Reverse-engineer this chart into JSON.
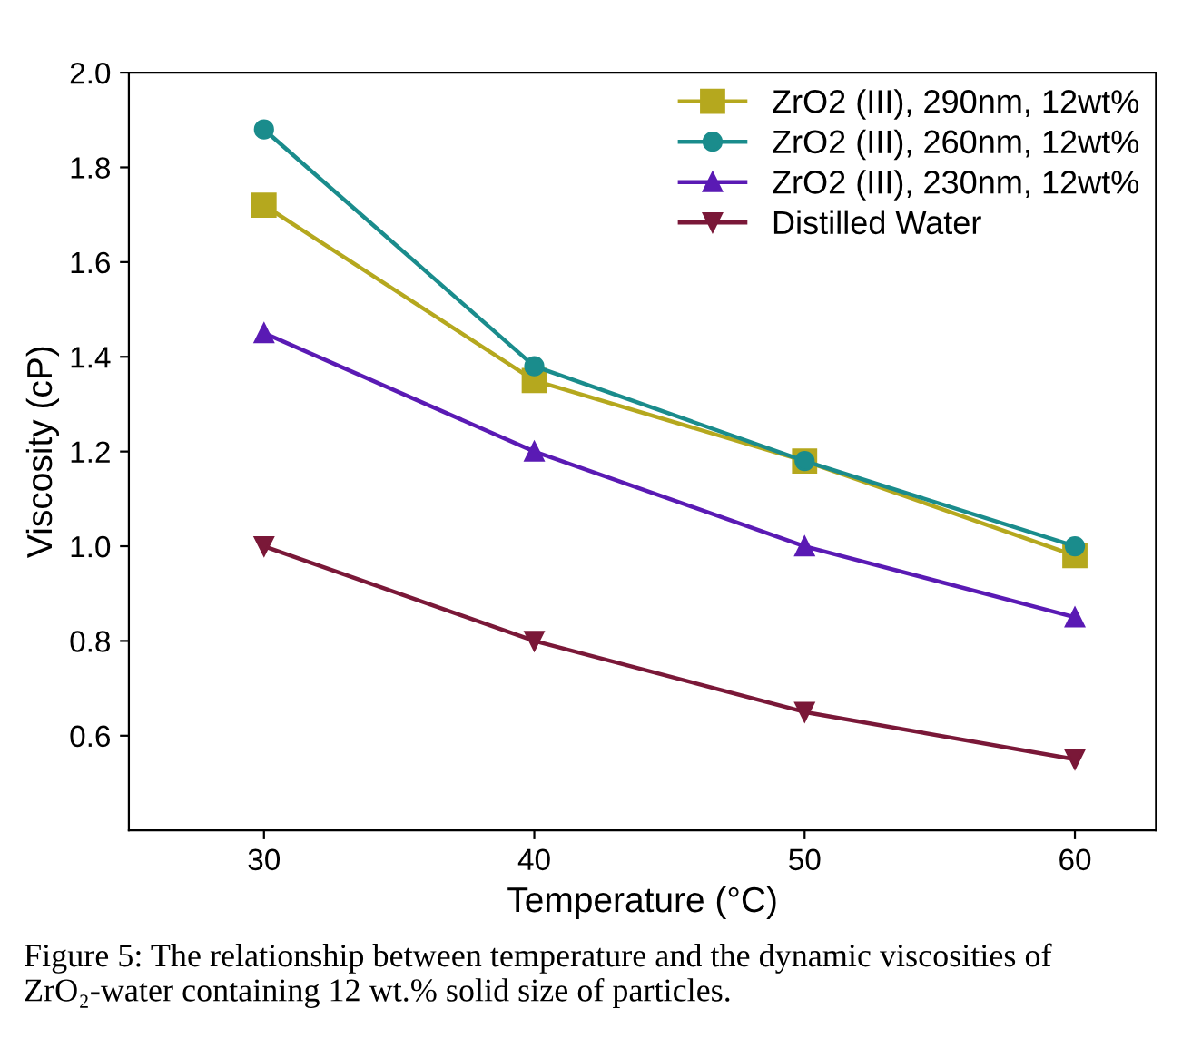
{
  "chart_data": {
    "type": "line",
    "xlabel": "Temperature (°C)",
    "ylabel": "Viscosity (cP)",
    "x": [
      30,
      40,
      50,
      60
    ],
    "series": [
      {
        "name": "ZrO2 (III), 290nm, 12wt%",
        "color": "#b5a81e",
        "marker": "square",
        "values": [
          1.72,
          1.35,
          1.18,
          0.98
        ]
      },
      {
        "name": "ZrO2 (III), 260nm, 12wt%",
        "color": "#1a8c8c",
        "marker": "circle",
        "values": [
          1.88,
          1.38,
          1.18,
          1.0
        ]
      },
      {
        "name": "ZrO2 (III), 230nm, 12wt%",
        "color": "#5a1ab4",
        "marker": "triangle",
        "values": [
          1.45,
          1.2,
          1.0,
          0.85
        ]
      },
      {
        "name": "Distilled Water",
        "color": "#7a1838",
        "marker": "triangle_down",
        "values": [
          1.0,
          0.8,
          0.65,
          0.55
        ]
      }
    ],
    "xlim": [
      25,
      63
    ],
    "xticks": [
      30,
      40,
      50,
      60
    ],
    "ylim": [
      0.4,
      2.0
    ],
    "yticks": [
      0.6,
      0.8,
      {
        "value": 1.0,
        "label": "1.0"
      },
      1.2,
      1.4,
      1.6,
      1.8,
      {
        "value": 2.0,
        "label": "2.0"
      }
    ],
    "grid": false,
    "legend": "top right",
    "line_style": "solid",
    "annotations": [
      "Figure 5: The relationship between temperature and the dynamic viscosities of ZrO₂-water containing 12 wt.% solid size of particles."
    ]
  }
}
